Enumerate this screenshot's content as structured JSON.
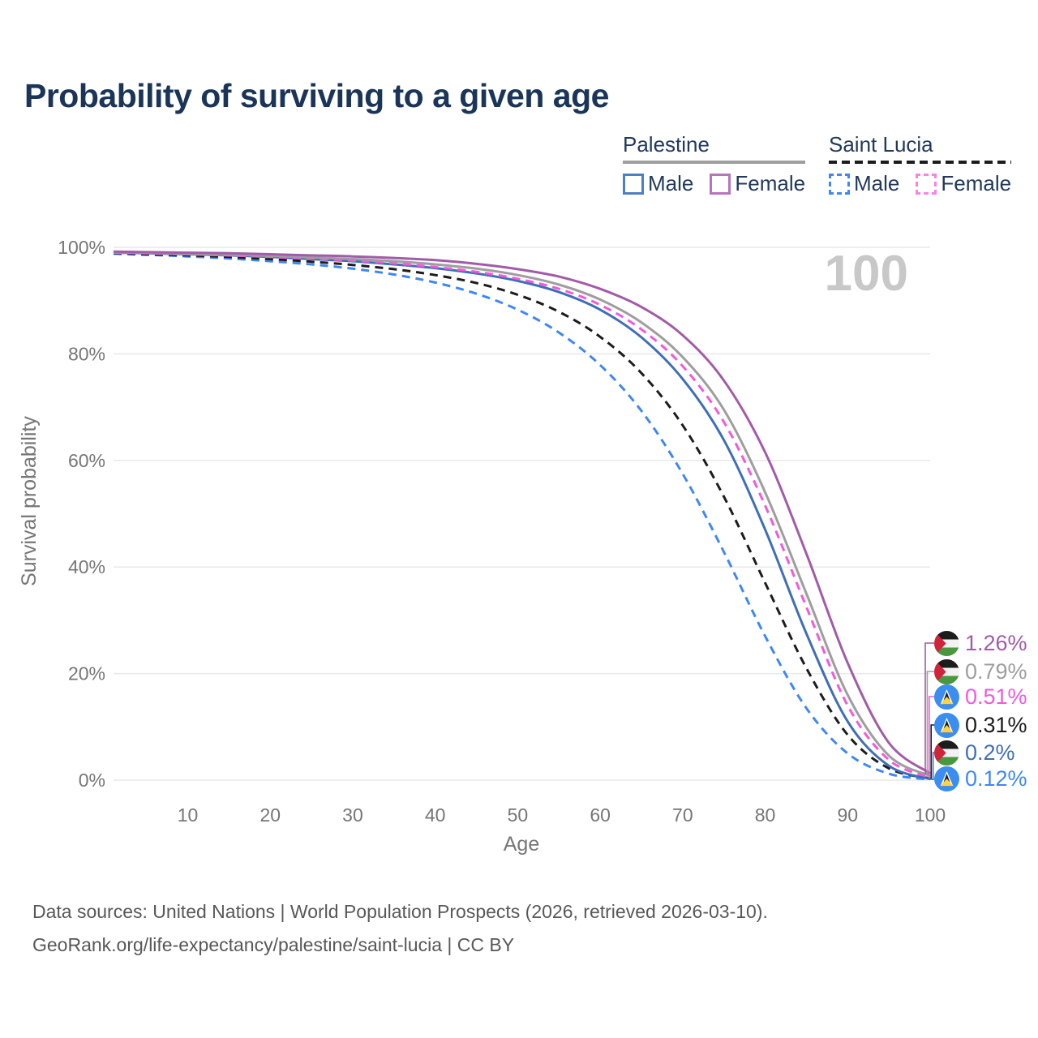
{
  "title": "Probability of surviving to a given age",
  "legend": {
    "groups": [
      {
        "title": "Palestine",
        "line_style": "solid",
        "line_color": "#9e9e9e",
        "items": [
          {
            "label": "Male",
            "box_style": "solid",
            "box_color": "#4d7fc4"
          },
          {
            "label": "Female",
            "box_style": "solid",
            "box_color": "#b873bd"
          }
        ]
      },
      {
        "title": "Saint Lucia",
        "line_style": "dashed",
        "line_color": "#1c1c1c",
        "items": [
          {
            "label": "Male",
            "box_style": "dashed",
            "box_color": "#3d88f4"
          },
          {
            "label": "Female",
            "box_style": "dashed",
            "box_color": "#fa82e6"
          }
        ]
      }
    ]
  },
  "chart_data": {
    "type": "line",
    "title": "Probability of surviving to a given age",
    "xlabel": "Age",
    "ylabel": "Survival probability",
    "xlim": [
      1,
      100
    ],
    "ylim": [
      0,
      100
    ],
    "grid": true,
    "legend_position": "top-right",
    "hover_age_label": "100",
    "xticks": [
      10,
      20,
      30,
      40,
      50,
      60,
      70,
      80,
      90,
      100
    ],
    "yticks": [
      {
        "label": "100%",
        "value": 100
      },
      {
        "label": "80%",
        "value": 80
      },
      {
        "label": "60%",
        "value": 60
      },
      {
        "label": "40%",
        "value": 40
      },
      {
        "label": "20%",
        "value": 20
      },
      {
        "label": "0%",
        "value": 0
      }
    ],
    "x": [
      1,
      5,
      10,
      15,
      20,
      25,
      30,
      35,
      40,
      45,
      50,
      55,
      60,
      65,
      70,
      75,
      80,
      85,
      90,
      95,
      100
    ],
    "series": [
      {
        "name": "Saint Lucia — Male",
        "country": "saint-lucia",
        "sex": "male",
        "line": "dashed",
        "color": "#3d88f4",
        "label_color": "#3d88f4",
        "end_label": "0.12%",
        "final_value": 0.12,
        "values": [
          98.8,
          98.6,
          98.3,
          97.9,
          97.4,
          96.8,
          96.0,
          94.9,
          93.4,
          91.3,
          88.3,
          84.0,
          77.9,
          69.3,
          57.5,
          42.8,
          27.0,
          13.5,
          5.0,
          1.2,
          0.12
        ]
      },
      {
        "name": "Saint Lucia — Both sexes",
        "country": "saint-lucia",
        "sex": "all",
        "line": "dashed",
        "color": "#1c1c1c",
        "label_color": "#1c1c1c",
        "end_label": "0.31%",
        "final_value": 0.31,
        "values": [
          98.9,
          98.7,
          98.5,
          98.2,
          97.8,
          97.3,
          96.7,
          95.9,
          94.8,
          93.3,
          91.1,
          87.9,
          83.2,
          76.4,
          66.6,
          53.2,
          37.0,
          21.0,
          8.5,
          2.2,
          0.31
        ]
      },
      {
        "name": "Palestine — Male",
        "country": "palestine",
        "sex": "male",
        "line": "solid",
        "color": "#3e6fb7",
        "label_color": "#3e6fb7",
        "end_label": "0.2%",
        "final_value": 0.2,
        "values": [
          99.0,
          98.9,
          98.7,
          98.5,
          98.2,
          97.8,
          97.4,
          96.8,
          96.1,
          95.1,
          93.7,
          91.6,
          88.3,
          83.1,
          75.3,
          63.8,
          47.0,
          27.5,
          11.0,
          2.7,
          0.2
        ]
      },
      {
        "name": "Saint Lucia — Female",
        "country": "saint-lucia",
        "sex": "female",
        "line": "dashed",
        "color": "#f557dd",
        "label_color": "#f557dd",
        "end_label": "0.51%",
        "final_value": 0.51,
        "values": [
          99.0,
          98.9,
          98.7,
          98.5,
          98.2,
          97.9,
          97.5,
          97.0,
          96.3,
          95.4,
          94.1,
          92.2,
          89.2,
          84.6,
          77.7,
          67.2,
          51.5,
          32.5,
          14.0,
          3.8,
          0.51
        ]
      },
      {
        "name": "Palestine — Both sexes",
        "country": "palestine",
        "sex": "all",
        "line": "solid",
        "color": "#9e9e9e",
        "label_color": "#9e9e9e",
        "end_label": "0.79%",
        "final_value": 0.79,
        "values": [
          99.1,
          99.0,
          98.8,
          98.6,
          98.4,
          98.1,
          97.8,
          97.4,
          96.8,
          96.0,
          94.8,
          93.0,
          90.2,
          85.9,
          79.4,
          69.5,
          54.0,
          35.0,
          16.0,
          4.6,
          0.79
        ]
      },
      {
        "name": "Palestine — Female",
        "country": "palestine",
        "sex": "female",
        "line": "solid",
        "color": "#a25ba8",
        "label_color": "#a25ba8",
        "end_label": "1.26%",
        "final_value": 1.26,
        "values": [
          99.2,
          99.1,
          99.0,
          98.9,
          98.7,
          98.5,
          98.3,
          98.0,
          97.6,
          96.9,
          95.9,
          94.5,
          92.2,
          88.8,
          83.5,
          75.0,
          61.5,
          42.5,
          22.0,
          7.0,
          1.26
        ]
      }
    ]
  },
  "footer": {
    "line1": "Data sources: United Nations | World Population Prospects (2026, retrieved 2026-03-10).",
    "line2": "GeoRank.org/life-expectancy/palestine/saint-lucia | CC BY"
  }
}
